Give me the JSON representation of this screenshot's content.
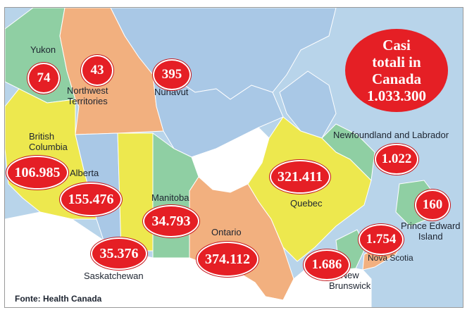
{
  "colors": {
    "water": "#b8d4ea",
    "land": "#ffffff",
    "yukon": "#8fcfa3",
    "northwest_territories": "#f2b07f",
    "nunavut": "#a9c8e6",
    "british_columbia": "#ede84e",
    "alberta": "#a9c8e6",
    "saskatchewan": "#ede84e",
    "manitoba": "#8fcfa3",
    "ontario": "#f2b07f",
    "quebec": "#ede84e",
    "newfoundland": "#8fcfa3",
    "maritimes": "#f2b07f",
    "bubble": "#e51f25"
  },
  "total": {
    "line1": "Casi",
    "line2": "totali in",
    "line3": "Canada",
    "line4": "1.033.300"
  },
  "regions": {
    "yukon": {
      "name": "Yukon",
      "cases": "74"
    },
    "northwest_territories": {
      "name_line1": "Northwest",
      "name_line2": "Territories",
      "cases": "43"
    },
    "nunavut": {
      "name": "Nunavut",
      "cases": "395"
    },
    "british_columbia": {
      "name_line1": "British",
      "name_line2": "Columbia",
      "cases": "106.985"
    },
    "alberta": {
      "name": "Alberta",
      "cases": "155.476"
    },
    "saskatchewan": {
      "name": "Saskatchewan",
      "cases": "35.376"
    },
    "manitoba": {
      "name": "Manitoba",
      "cases": "34.793"
    },
    "ontario": {
      "name": "Ontario",
      "cases": "374.112"
    },
    "quebec": {
      "name": "Quebec",
      "cases": "321.411"
    },
    "newfoundland": {
      "name": "Newfoundland and Labrador",
      "cases": "1.022"
    },
    "prince_edward_island": {
      "name_line1": "Prince Edward",
      "name_line2": "Island",
      "cases": "160"
    },
    "nova_scotia": {
      "name": "Nova Scotia",
      "cases": "1.754"
    },
    "new_brunswick": {
      "name_line1": "New",
      "name_line2": "Brunswick",
      "cases": "1.686"
    }
  },
  "source": "Fonte: Health Canada"
}
